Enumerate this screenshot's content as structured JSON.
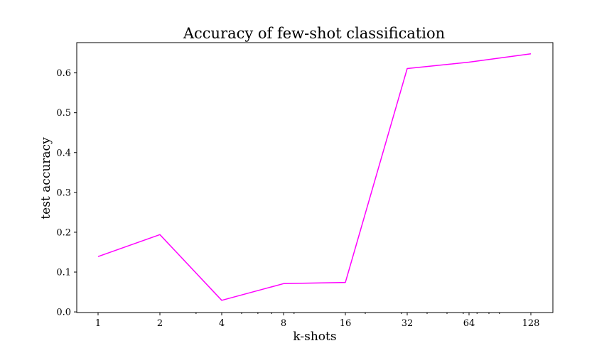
{
  "chart_data": {
    "type": "line",
    "title": "Accuracy of few-shot classification",
    "xlabel": "k-shots",
    "ylabel": "test accuracy",
    "x_scale": "log2",
    "x": [
      1,
      2,
      4,
      8,
      16,
      32,
      64,
      128
    ],
    "x_tick_labels": [
      "1",
      "2",
      "4",
      "8",
      "16",
      "32",
      "64",
      "128"
    ],
    "y_ticks": [
      0.0,
      0.1,
      0.2,
      0.3,
      0.4,
      0.5,
      0.6
    ],
    "y_tick_labels": [
      "0.0",
      "0.1",
      "0.2",
      "0.3",
      "0.4",
      "0.5",
      "0.6"
    ],
    "ylim": [
      -0.0016,
      0.676
    ],
    "series": [
      {
        "color": "#ff00ff",
        "values": [
          0.139,
          0.194,
          0.029,
          0.071,
          0.074,
          0.611,
          0.627,
          0.648
        ]
      }
    ],
    "grid": false,
    "legend": "none"
  }
}
